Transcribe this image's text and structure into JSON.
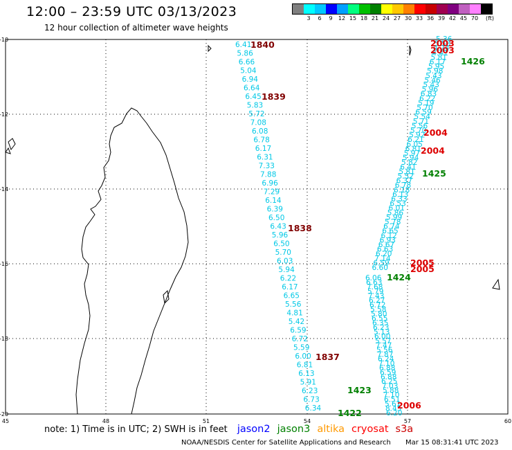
{
  "header": {
    "title": "12:00 – 23:59 UTC 03/13/2023",
    "subtitle": "12 hour collection of altimeter wave heights"
  },
  "colorbar": {
    "colors": [
      "#7f7f7f",
      "#00ffff",
      "#00c8ff",
      "#0000ff",
      "#00a0ff",
      "#00ff7f",
      "#00c000",
      "#008000",
      "#ffff00",
      "#ffc800",
      "#ff8000",
      "#ff0000",
      "#c80000",
      "#a00050",
      "#800080",
      "#c060c0",
      "#ff80ff",
      "#000000"
    ],
    "labels": [
      "3",
      "6",
      "9",
      "12",
      "15",
      "18",
      "21",
      "24",
      "27",
      "30",
      "33",
      "36",
      "39",
      "42",
      "45",
      "70"
    ],
    "unit": "(ft)"
  },
  "axes": {
    "lat_labels": [
      "-10",
      "-12",
      "-14",
      "-16",
      "-18",
      "-20"
    ],
    "lon_labels": [
      "45",
      "48",
      "51",
      "54",
      "57",
      "60"
    ]
  },
  "track_colors": {
    "observation": "#00c8e6",
    "time_red": "#dd0000",
    "time_maroon": "#800000",
    "time_green": "#008000"
  },
  "tracks": {
    "west": {
      "time_labels": [
        "1840",
        "1839",
        "1838",
        "1837"
      ],
      "values": [
        "6.41",
        "5.86",
        "6.66",
        "5.04",
        "6.94",
        "6.64",
        "6.45",
        "5.83",
        "5.72",
        "7.08",
        "6.08",
        "6.78",
        "6.17",
        "6.31",
        "7.33",
        "7.88",
        "6.96",
        "7.29",
        "6.14",
        "6.39",
        "6.50",
        "6.43",
        "5.96",
        "6.50",
        "5.70",
        "6.03",
        "5.94",
        "6.22",
        "6.17",
        "6.65",
        "5.56",
        "4.81",
        "5.42",
        "6.59",
        "6.72",
        "5.59",
        "6.00",
        "6.81",
        "6.13",
        "5.91",
        "6.23",
        "6.73",
        "6.34"
      ]
    },
    "east_north": {
      "time_labels": [
        "2003",
        "2003",
        "1426",
        "2004",
        "2004",
        "1425"
      ],
      "values": [
        "5.36",
        "5.53",
        "4.74",
        "4.41",
        "5.81",
        "6.17",
        "5.95",
        "5.98",
        "5.43",
        "5.46",
        "5.43",
        "5.96",
        "6.83",
        "6.22",
        "5.19",
        "5.70",
        "6.59",
        "5.54",
        "5.71",
        "5.56",
        "5.70",
        "5.92",
        "6.21",
        "6.05",
        "6.81",
        "5.97",
        "5.94",
        "5.82",
        "6.41",
        "5.81",
        "5.52",
        "6.37",
        "6.78",
        "6.18",
        "6.13",
        "6.33",
        "6.53",
        "6.01",
        "5.86",
        "5.99",
        "5.78",
        "6.74",
        "6.65",
        "6.12",
        "6.93",
        "6.67",
        "6.63",
        "6.20",
        "7.14",
        "6.59",
        "6.60"
      ]
    },
    "east_south": {
      "time_labels": [
        "2005",
        "2005",
        "1424",
        "1423",
        "1422",
        "2006"
      ],
      "values": [
        "6.06",
        "6.63",
        "7.68",
        "5.79",
        "7.43",
        "6.27",
        "6.72",
        "5.58",
        "5.80",
        "6.55",
        "6.35",
        "6.23",
        "5.13",
        "6.00",
        "5.57",
        "7.47",
        "5.56",
        "7.87",
        "6.24",
        "7.10",
        "6.88",
        "6.59",
        "6.88",
        "6.25",
        "7.03",
        "5.88",
        "7.10",
        "6.51",
        "5.61",
        "8.45",
        "6.20"
      ]
    }
  },
  "footnote": {
    "note": "note: 1) Time is in UTC; 2) SWH is in feet",
    "satellites": [
      {
        "name": "jason2",
        "color": "#0000ff"
      },
      {
        "name": "jason3",
        "color": "#008000"
      },
      {
        "name": "altika",
        "color": "#ff9900"
      },
      {
        "name": "cryosat",
        "color": "#ff0000"
      },
      {
        "name": "s3a",
        "color": "#cc0000"
      }
    ]
  },
  "credit": {
    "org": "NOAA/NESDIS Center for Satellite Applications and Research",
    "timestamp": "Mar 15 08:31:41 UTC 2023"
  }
}
